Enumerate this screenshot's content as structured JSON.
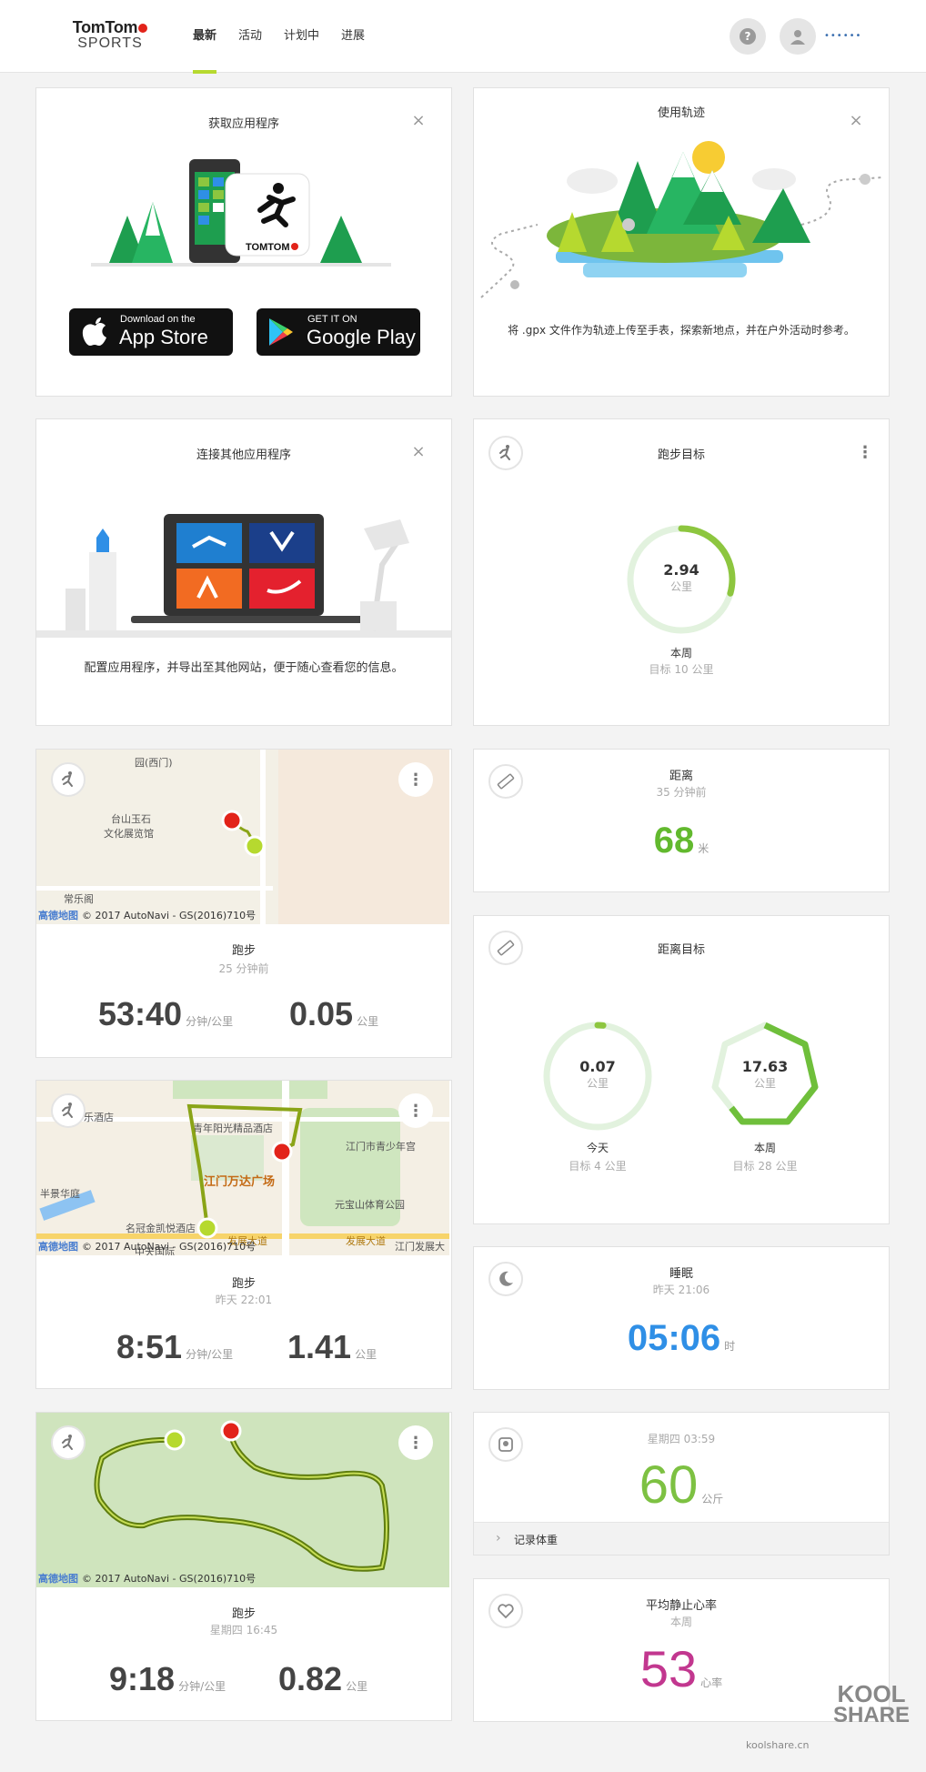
{
  "header": {
    "logo_line1": "TomTom",
    "logo_line2": "SPORTS",
    "nav": [
      "最新",
      "活动",
      "计划中",
      "进展"
    ],
    "help_glyph": "?",
    "username": "••••••"
  },
  "cards": {
    "get_app": {
      "title": "获取应用程序",
      "appstore_small": "Download on the",
      "appstore_big": "App Store",
      "googleplay_small": "GET IT ON",
      "googleplay_big": "Google Play",
      "phone_brand": "TOMTOM"
    },
    "tracks": {
      "title": "使用轨迹",
      "desc": "将 .gpx 文件作为轨迹上传至手表，探索新地点，并在户外活动时参考。"
    },
    "connect": {
      "title": "连接其他应用程序",
      "desc": "配置应用程序，并导出至其他网站，便于随心查看您的信息。"
    },
    "run_goal": {
      "title": "跑步目标",
      "value": "2.94",
      "unit": "公里",
      "period": "本周",
      "target": "目标 10 公里",
      "progress": 0.294
    },
    "run1": {
      "type": "跑步",
      "time": "25 分钟前",
      "pace": "53:40",
      "pace_unit": "分钟/公里",
      "distance": "0.05",
      "distance_unit": "公里",
      "map_labels": [
        "园(西门)",
        "台山玉石",
        "文化展览馆",
        "常乐阁"
      ],
      "map_copy_brand": "高德地图",
      "map_copy": "© 2017 AutoNavi - GS(2016)710号"
    },
    "run2": {
      "type": "跑步",
      "time": "昨天 22:01",
      "pace": "8:51",
      "pace_unit": "分钟/公里",
      "distance": "1.41",
      "distance_unit": "公里",
      "map_labels": [
        "乐酒店",
        "青年阳光精品酒店",
        "江门市青少年宫",
        "江门万达广场",
        "半景华庭",
        "元宝山体育公园",
        "名冠金凯悦酒店",
        "发展大道",
        "发展大道",
        "江门发展大道",
        "中天国际"
      ],
      "map_copy_brand": "高德地图",
      "map_copy": "© 2017 AutoNavi - GS(2016)710号"
    },
    "run3": {
      "type": "跑步",
      "time": "星期四 16:45",
      "pace": "9:18",
      "pace_unit": "分钟/公里",
      "distance": "0.82",
      "distance_unit": "公里",
      "map_copy_brand": "高德地图",
      "map_copy": "© 2017 AutoNavi - GS(2016)710号"
    },
    "distance": {
      "title": "距离",
      "time": "35 分钟前",
      "value": "68",
      "unit": "米"
    },
    "distance_goal": {
      "title": "距离目标",
      "today_value": "0.07",
      "today_unit": "公里",
      "today_label": "今天",
      "today_target": "目标 4 公里",
      "today_progress": 0.0175,
      "week_value": "17.63",
      "week_unit": "公里",
      "week_label": "本周",
      "week_target": "目标 28 公里",
      "week_progress": 0.63
    },
    "sleep": {
      "title": "睡眠",
      "time": "昨天 21:06",
      "value": "05:06",
      "unit": "时"
    },
    "weight": {
      "time": "星期四 03:59",
      "value": "60",
      "unit": "公斤",
      "record_label": "记录体重"
    },
    "heart": {
      "title": "平均静止心率",
      "period": "本周",
      "value": "53",
      "unit": "心率"
    }
  },
  "watermark": {
    "brand_top": "KOOL",
    "brand_bottom": "SHARE",
    "site": "koolshare.cn"
  },
  "colors": {
    "accent_green": "#8dc63f",
    "sleep_blue": "#2f8fe6",
    "heart_magenta": "#c2378f",
    "weight_green": "#7dc142"
  }
}
